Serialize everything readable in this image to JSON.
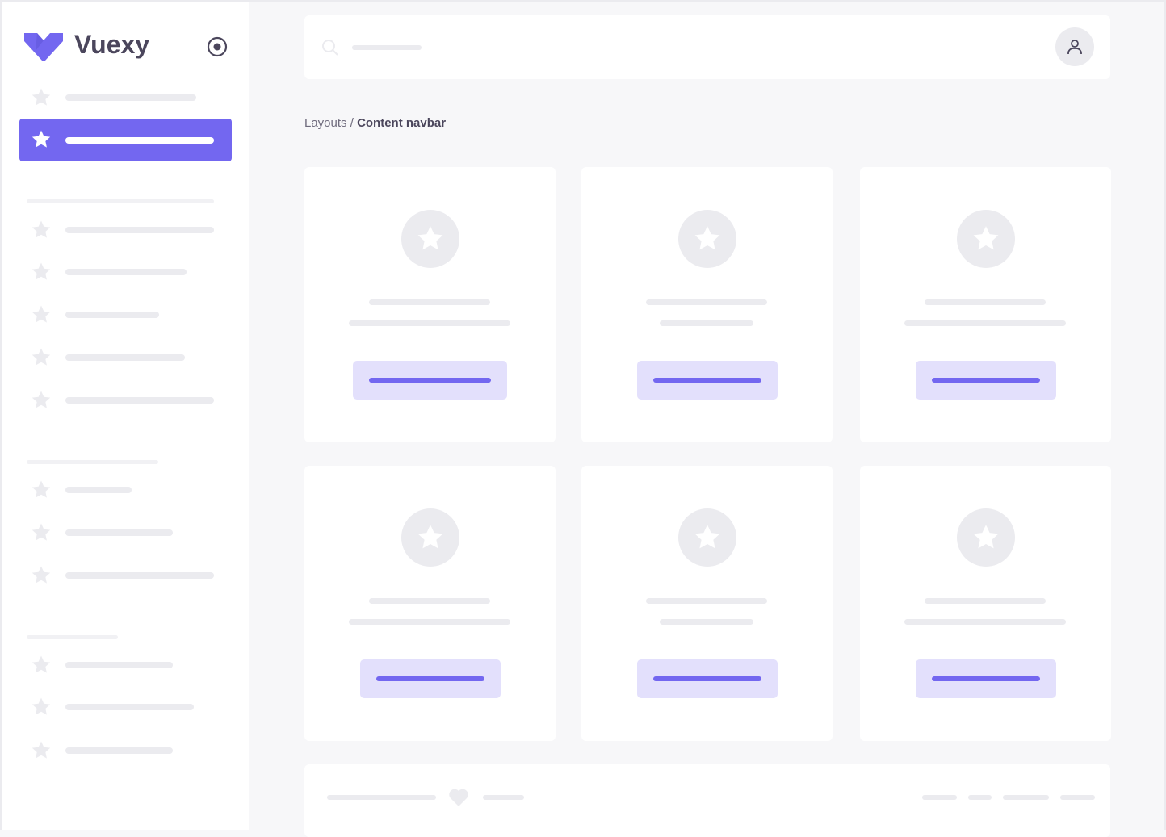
{
  "brand": {
    "name": "Vuexy",
    "logo_color": "#7367f0"
  },
  "colors": {
    "primary": "#7367f0",
    "primary_light": "#e3e0fc",
    "placeholder": "#ebebef",
    "background": "#f7f7f9",
    "text": "#4b465c"
  },
  "sidebar": {
    "toggle_icon": "radio-circle-icon",
    "item_icon": "star-icon",
    "active_index": 1
  },
  "header": {
    "search_icon": "search-icon",
    "avatar_icon": "user-icon"
  },
  "breadcrumb": {
    "parent": "Layouts",
    "separator": " / ",
    "current": "Content navbar"
  },
  "footer": {
    "icon": "heart-icon"
  }
}
